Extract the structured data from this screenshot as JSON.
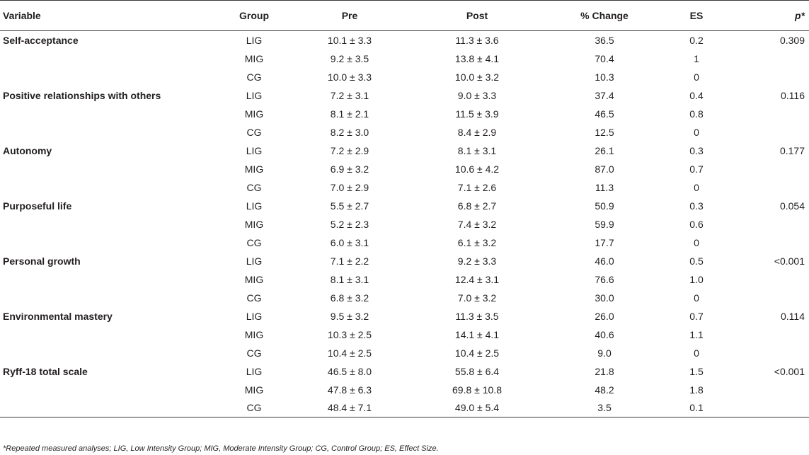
{
  "headers": {
    "variable": "Variable",
    "group": "Group",
    "pre": "Pre",
    "post": "Post",
    "change": "% Change",
    "es": "ES",
    "p": "p*"
  },
  "rows": [
    {
      "variable": "Self-acceptance",
      "group": "LIG",
      "pre": "10.1 ± 3.3",
      "post": "11.3 ± 3.6",
      "change": "36.5",
      "es": "0.2",
      "p": "0.309"
    },
    {
      "variable": "",
      "group": "MIG",
      "pre": "9.2 ± 3.5",
      "post": "13.8 ± 4.1",
      "change": "70.4",
      "es": "1",
      "p": ""
    },
    {
      "variable": "",
      "group": "CG",
      "pre": "10.0 ± 3.3",
      "post": "10.0 ± 3.2",
      "change": "10.3",
      "es": "0",
      "p": ""
    },
    {
      "variable": "Positive relationships with others",
      "group": "LIG",
      "pre": "7.2 ± 3.1",
      "post": "9.0 ± 3.3",
      "change": "37.4",
      "es": "0.4",
      "p": "0.116"
    },
    {
      "variable": "",
      "group": "MIG",
      "pre": "8.1 ± 2.1",
      "post": "11.5 ± 3.9",
      "change": "46.5",
      "es": "0.8",
      "p": ""
    },
    {
      "variable": "",
      "group": "CG",
      "pre": "8.2 ± 3.0",
      "post": "8.4 ± 2.9",
      "change": "12.5",
      "es": "0",
      "p": ""
    },
    {
      "variable": "Autonomy",
      "group": "LIG",
      "pre": "7.2 ± 2.9",
      "post": "8.1 ± 3.1",
      "change": "26.1",
      "es": "0.3",
      "p": "0.177"
    },
    {
      "variable": "",
      "group": "MIG",
      "pre": "6.9 ± 3.2",
      "post": "10.6 ± 4.2",
      "change": "87.0",
      "es": "0.7",
      "p": ""
    },
    {
      "variable": "",
      "group": "CG",
      "pre": "7.0 ± 2.9",
      "post": "7.1 ± 2.6",
      "change": "11.3",
      "es": "0",
      "p": ""
    },
    {
      "variable": "Purposeful life",
      "group": "LIG",
      "pre": "5.5 ± 2.7",
      "post": "6.8 ± 2.7",
      "change": "50.9",
      "es": "0.3",
      "p": "0.054"
    },
    {
      "variable": "",
      "group": "MIG",
      "pre": "5.2 ± 2.3",
      "post": "7.4 ± 3.2",
      "change": "59.9",
      "es": "0.6",
      "p": ""
    },
    {
      "variable": "",
      "group": "CG",
      "pre": "6.0 ± 3.1",
      "post": "6.1 ± 3.2",
      "change": "17.7",
      "es": "0",
      "p": ""
    },
    {
      "variable": "Personal growth",
      "group": "LIG",
      "pre": "7.1 ± 2.2",
      "post": "9.2 ± 3.3",
      "change": "46.0",
      "es": "0.5",
      "p": "<0.001"
    },
    {
      "variable": "",
      "group": "MIG",
      "pre": "8.1 ± 3.1",
      "post": "12.4 ± 3.1",
      "change": "76.6",
      "es": "1.0",
      "p": ""
    },
    {
      "variable": "",
      "group": "CG",
      "pre": "6.8 ± 3.2",
      "post": "7.0 ± 3.2",
      "change": "30.0",
      "es": "0",
      "p": ""
    },
    {
      "variable": "Environmental mastery",
      "group": "LIG",
      "pre": "9.5 ± 3.2",
      "post": "11.3 ± 3.5",
      "change": "26.0",
      "es": "0.7",
      "p": "0.114"
    },
    {
      "variable": "",
      "group": "MIG",
      "pre": "10.3 ± 2.5",
      "post": "14.1 ± 4.1",
      "change": "40.6",
      "es": "1.1",
      "p": ""
    },
    {
      "variable": "",
      "group": "CG",
      "pre": "10.4 ± 2.5",
      "post": "10.4 ± 2.5",
      "change": "9.0",
      "es": "0",
      "p": ""
    },
    {
      "variable": "Ryff-18 total scale",
      "group": "LIG",
      "pre": "46.5 ± 8.0",
      "post": "55.8 ± 6.4",
      "change": "21.8",
      "es": "1.5",
      "p": "<0.001"
    },
    {
      "variable": "",
      "group": "MIG",
      "pre": "47.8 ± 6.3",
      "post": "69.8 ± 10.8",
      "change": "48.2",
      "es": "1.8",
      "p": ""
    },
    {
      "variable": "",
      "group": "CG",
      "pre": "48.4 ± 7.1",
      "post": "49.0 ± 5.4",
      "change": "3.5",
      "es": "0.1",
      "p": ""
    }
  ],
  "footnote": "*Repeated measured analyses; LIG, Low Intensity Group; MIG, Moderate Intensity Group; CG, Control Group; ES, Effect Size."
}
